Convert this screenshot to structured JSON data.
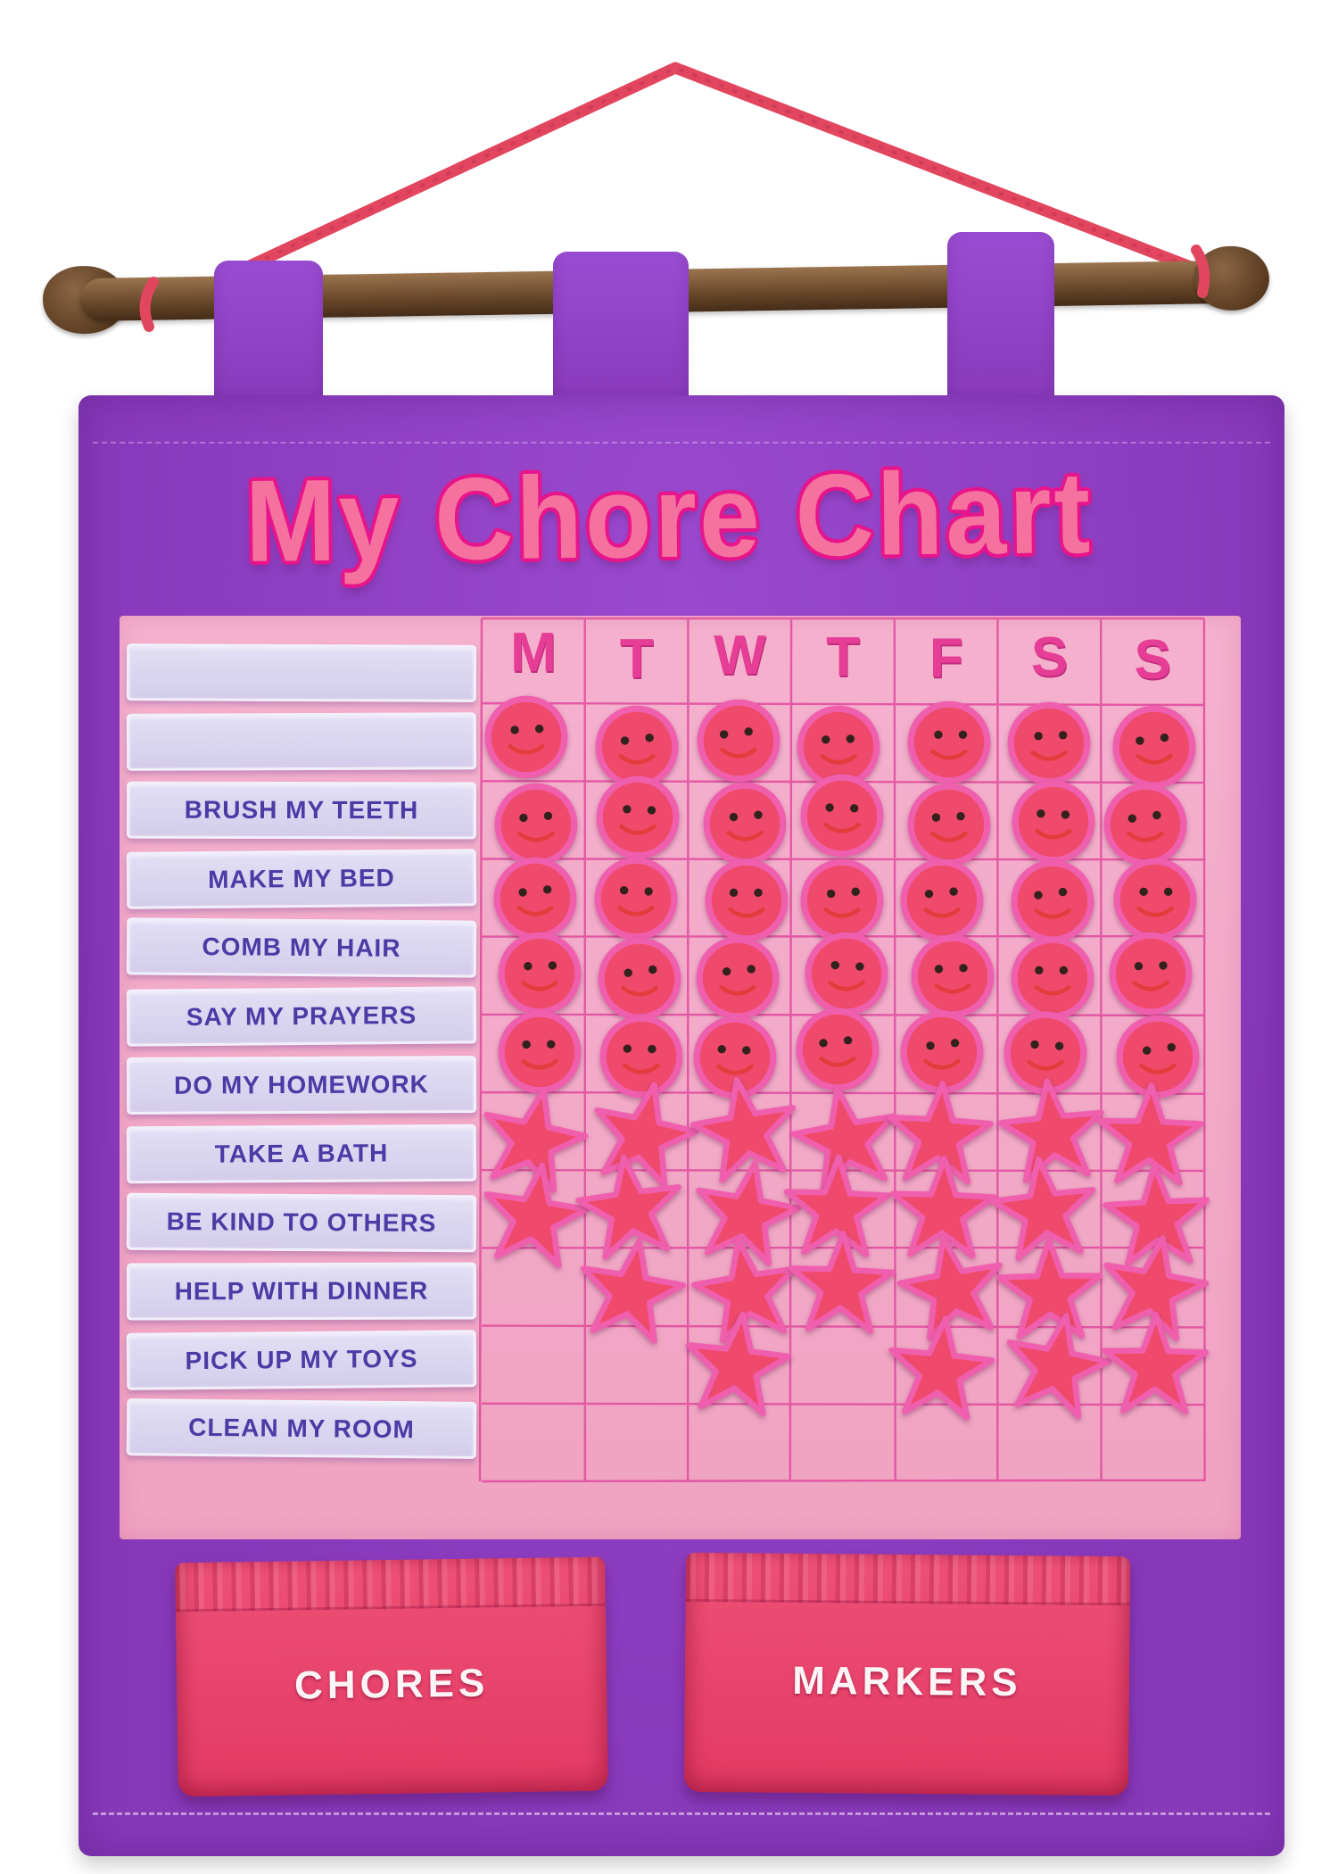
{
  "title": "My Chore Chart",
  "grid": {
    "days": [
      "M",
      "T",
      "W",
      "T",
      "F",
      "S",
      "S"
    ],
    "marker_rows": [
      [
        "smiley",
        "smiley",
        "smiley",
        "smiley",
        "smiley",
        "smiley",
        "smiley"
      ],
      [
        "smiley",
        "smiley",
        "smiley",
        "smiley",
        "smiley",
        "smiley",
        "smiley"
      ],
      [
        "smiley",
        "smiley",
        "smiley",
        "smiley",
        "smiley",
        "smiley",
        "smiley"
      ],
      [
        "smiley",
        "smiley",
        "smiley",
        "smiley",
        "smiley",
        "smiley",
        "smiley"
      ],
      [
        "smiley",
        "smiley",
        "smiley",
        "smiley",
        "smiley",
        "smiley",
        "smiley"
      ],
      [
        "star",
        "star",
        "star",
        "star",
        "star",
        "star",
        "star"
      ],
      [
        "star",
        "star",
        "star",
        "star",
        "star",
        "star",
        "star"
      ],
      [
        "",
        "star",
        "star",
        "star",
        "star",
        "star",
        "star"
      ],
      [
        "",
        "",
        "star",
        "",
        "star",
        "star",
        "star"
      ],
      [
        "",
        "",
        "",
        "",
        "",
        "",
        ""
      ]
    ]
  },
  "chores": [
    "",
    "",
    "BRUSH MY TEETH",
    "MAKE MY BED",
    "COMB MY HAIR",
    "SAY MY PRAYERS",
    "DO MY HOMEWORK",
    "TAKE A BATH",
    "BE KIND TO OTHERS",
    "HELP WITH DINNER",
    "PICK UP MY TOYS",
    "CLEAN MY ROOM"
  ],
  "pockets": {
    "chores": "CHORES",
    "markers": "MARKERS"
  },
  "colors": {
    "banner_purple": "#8e3ec4",
    "panel_pink": "#f2aac8",
    "grid_line": "#e1499c",
    "day_letter": "#e63e96",
    "title_pink": "#f5719e",
    "title_edge": "#e7158b",
    "strip_lavender": "#dcd8f1",
    "strip_text": "#4c3aa5",
    "marker_fill": "#ef4a6b",
    "marker_edge": "#f05fae",
    "pocket_pink": "#eb4a70",
    "rope_red": "#e2465f",
    "wood_brown": "#6b4a2c"
  }
}
